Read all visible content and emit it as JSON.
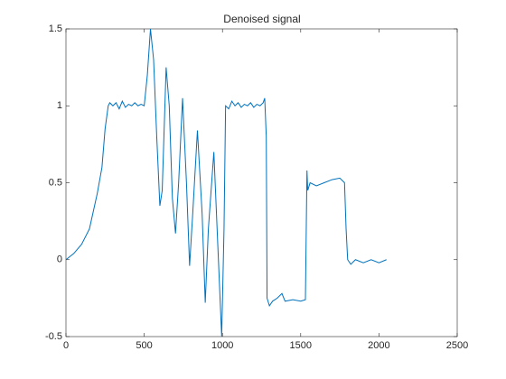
{
  "chart_data": {
    "type": "line",
    "title": "Denoised signal",
    "x": [
      0,
      50,
      100,
      150,
      200,
      230,
      250,
      270,
      280,
      300,
      320,
      340,
      360,
      380,
      400,
      420,
      440,
      460,
      480,
      500,
      520,
      540,
      560,
      580,
      600,
      615,
      640,
      660,
      680,
      700,
      720,
      745,
      770,
      790,
      810,
      840,
      870,
      890,
      910,
      945,
      970,
      995,
      1010,
      1020,
      1040,
      1060,
      1080,
      1100,
      1120,
      1140,
      1160,
      1180,
      1200,
      1220,
      1240,
      1260,
      1270,
      1280,
      1285,
      1300,
      1320,
      1350,
      1380,
      1400,
      1450,
      1500,
      1530,
      1540,
      1545,
      1560,
      1600,
      1650,
      1700,
      1750,
      1780,
      1790,
      1800,
      1820,
      1850,
      1900,
      1950,
      2000,
      2048
    ],
    "series": [
      {
        "name": "signal",
        "color": "#0072bd",
        "values": [
          0,
          0.04,
          0.1,
          0.2,
          0.43,
          0.6,
          0.85,
          1.0,
          1.02,
          1.0,
          1.02,
          0.98,
          1.03,
          0.99,
          1.01,
          1.0,
          1.02,
          1.0,
          1.01,
          1.0,
          1.2,
          1.5,
          1.3,
          0.8,
          0.35,
          0.45,
          1.25,
          1.0,
          0.4,
          0.17,
          0.5,
          1.05,
          0.5,
          -0.04,
          0.3,
          0.84,
          0.3,
          -0.28,
          0.2,
          0.7,
          0.1,
          -0.5,
          0.2,
          1.0,
          0.98,
          1.03,
          1.0,
          1.02,
          0.99,
          1.01,
          1.0,
          1.02,
          0.99,
          1.01,
          1.0,
          1.02,
          1.05,
          0.8,
          -0.25,
          -0.3,
          -0.27,
          -0.25,
          -0.22,
          -0.27,
          -0.26,
          -0.27,
          -0.26,
          0.58,
          0.45,
          0.5,
          0.48,
          0.5,
          0.52,
          0.53,
          0.5,
          0.2,
          0.0,
          -0.03,
          0.0,
          -0.02,
          0.0,
          -0.02,
          0.0
        ]
      }
    ],
    "xlim": [
      0,
      2500
    ],
    "xticks": [
      0,
      500,
      1000,
      1500,
      2000,
      2500
    ],
    "ylim": [
      -0.5,
      1.5
    ],
    "yticks": [
      -0.5,
      0,
      0.5,
      1,
      1.5
    ]
  }
}
